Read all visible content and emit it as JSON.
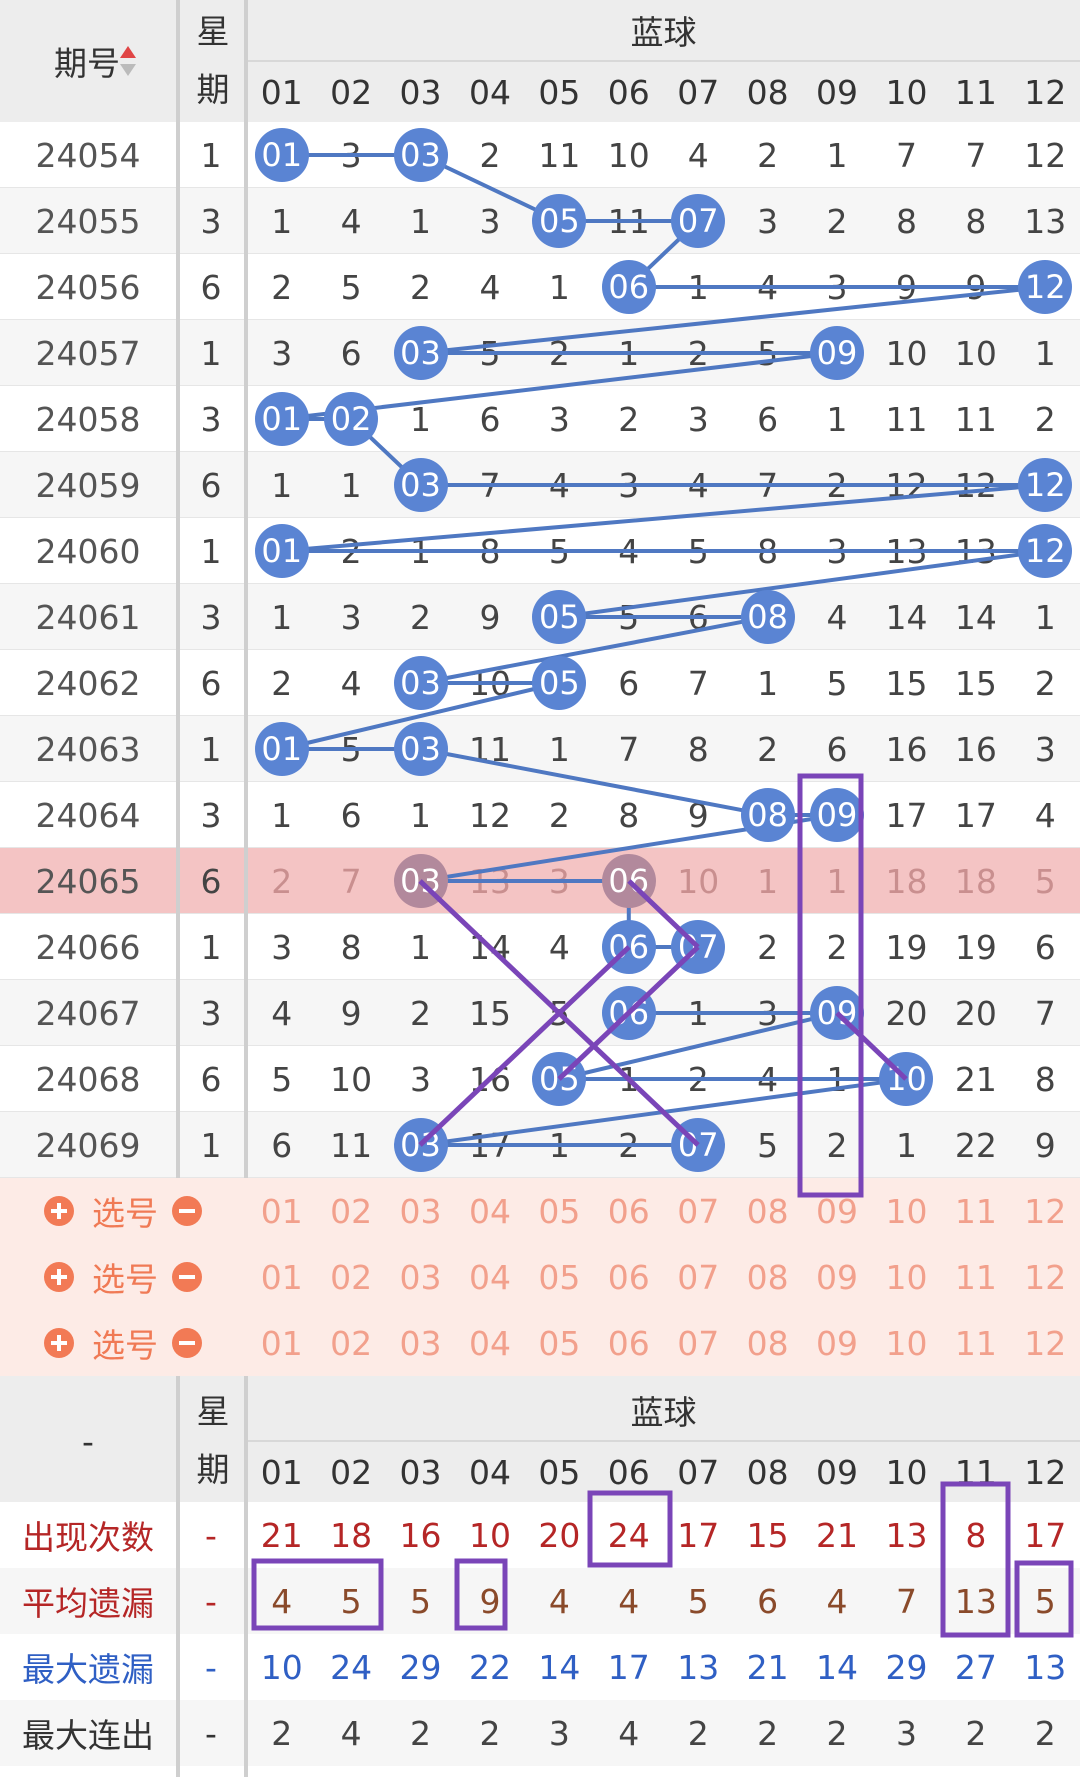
{
  "header": {
    "period": "期号",
    "weekday": "星期",
    "group": "蓝球",
    "columns": [
      "01",
      "02",
      "03",
      "04",
      "05",
      "06",
      "07",
      "08",
      "09",
      "10",
      "11",
      "12"
    ]
  },
  "rows": [
    {
      "period": "24054",
      "weekday": "1",
      "cells": [
        {
          "ball": "01"
        },
        "3",
        {
          "ball": "03"
        },
        "2",
        "11",
        "10",
        "4",
        "2",
        "1",
        "7",
        "7",
        "12"
      ]
    },
    {
      "period": "24055",
      "weekday": "3",
      "cells": [
        "1",
        "4",
        "1",
        "3",
        {
          "ball": "05"
        },
        "11",
        {
          "ball": "07"
        },
        "3",
        "2",
        "8",
        "8",
        "13"
      ]
    },
    {
      "period": "24056",
      "weekday": "6",
      "cells": [
        "2",
        "5",
        "2",
        "4",
        "1",
        {
          "ball": "06"
        },
        "1",
        "4",
        "3",
        "9",
        "9",
        {
          "ball": "12"
        }
      ]
    },
    {
      "period": "24057",
      "weekday": "1",
      "cells": [
        "3",
        "6",
        {
          "ball": "03"
        },
        "5",
        "2",
        "1",
        "2",
        "5",
        {
          "ball": "09"
        },
        "10",
        "10",
        "1"
      ]
    },
    {
      "period": "24058",
      "weekday": "3",
      "cells": [
        {
          "ball": "01"
        },
        {
          "ball": "02"
        },
        "1",
        "6",
        "3",
        "2",
        "3",
        "6",
        "1",
        "11",
        "11",
        "2"
      ]
    },
    {
      "period": "24059",
      "weekday": "6",
      "cells": [
        "1",
        "1",
        {
          "ball": "03"
        },
        "7",
        "4",
        "3",
        "4",
        "7",
        "2",
        "12",
        "12",
        {
          "ball": "12"
        }
      ]
    },
    {
      "period": "24060",
      "weekday": "1",
      "cells": [
        {
          "ball": "01"
        },
        "2",
        "1",
        "8",
        "5",
        "4",
        "5",
        "8",
        "3",
        "13",
        "13",
        {
          "ball": "12"
        }
      ]
    },
    {
      "period": "24061",
      "weekday": "3",
      "cells": [
        "1",
        "3",
        "2",
        "9",
        {
          "ball": "05"
        },
        "5",
        "6",
        {
          "ball": "08"
        },
        "4",
        "14",
        "14",
        "1"
      ]
    },
    {
      "period": "24062",
      "weekday": "6",
      "cells": [
        "2",
        "4",
        {
          "ball": "03"
        },
        "10",
        {
          "ball": "05"
        },
        "6",
        "7",
        "1",
        "5",
        "15",
        "15",
        "2"
      ]
    },
    {
      "period": "24063",
      "weekday": "1",
      "cells": [
        {
          "ball": "01"
        },
        "5",
        {
          "ball": "03"
        },
        "11",
        "1",
        "7",
        "8",
        "2",
        "6",
        "16",
        "16",
        "3"
      ]
    },
    {
      "period": "24064",
      "weekday": "3",
      "cells": [
        "1",
        "6",
        "1",
        "12",
        "2",
        "8",
        "9",
        {
          "ball": "08"
        },
        {
          "ball": "09"
        },
        "17",
        "17",
        "4"
      ]
    },
    {
      "period": "24065",
      "weekday": "6",
      "highlight": true,
      "cells": [
        "2",
        "7",
        {
          "ball": "03"
        },
        "13",
        "3",
        {
          "ball": "06"
        },
        "10",
        "1",
        "1",
        "18",
        "18",
        "5"
      ]
    },
    {
      "period": "24066",
      "weekday": "1",
      "cells": [
        "3",
        "8",
        "1",
        "14",
        "4",
        {
          "ball": "06"
        },
        {
          "ball": "07"
        },
        "2",
        "2",
        "19",
        "19",
        "6"
      ]
    },
    {
      "period": "24067",
      "weekday": "3",
      "cells": [
        "4",
        "9",
        "2",
        "15",
        "5",
        {
          "ball": "06"
        },
        "1",
        "3",
        {
          "ball": "09"
        },
        "20",
        "20",
        "7"
      ]
    },
    {
      "period": "24068",
      "weekday": "6",
      "cells": [
        "5",
        "10",
        "3",
        "16",
        {
          "ball": "05"
        },
        "1",
        "2",
        "4",
        "1",
        {
          "ball": "10"
        },
        "21",
        "8"
      ]
    },
    {
      "period": "24069",
      "weekday": "1",
      "cells": [
        "6",
        "11",
        {
          "ball": "03"
        },
        "17",
        "1",
        "2",
        {
          "ball": "07"
        },
        "5",
        "2",
        "1",
        "22",
        "9"
      ]
    }
  ],
  "selection": {
    "label": "选号",
    "rows": [
      [
        "01",
        "02",
        "03",
        "04",
        "05",
        "06",
        "07",
        "08",
        "09",
        "10",
        "11",
        "12"
      ],
      [
        "01",
        "02",
        "03",
        "04",
        "05",
        "06",
        "07",
        "08",
        "09",
        "10",
        "11",
        "12"
      ],
      [
        "01",
        "02",
        "03",
        "04",
        "05",
        "06",
        "07",
        "08",
        "09",
        "10",
        "11",
        "12"
      ]
    ]
  },
  "stats": {
    "header": {
      "period": "-",
      "weekday": "星期",
      "group": "蓝球",
      "columns": [
        "01",
        "02",
        "03",
        "04",
        "05",
        "06",
        "07",
        "08",
        "09",
        "10",
        "11",
        "12"
      ]
    },
    "rows": [
      {
        "label": "出现次数",
        "weekday": "-",
        "values": [
          21,
          18,
          16,
          10,
          20,
          24,
          17,
          15,
          21,
          13,
          8,
          17
        ]
      },
      {
        "label": "平均遗漏",
        "weekday": "-",
        "values": [
          4,
          5,
          5,
          9,
          4,
          4,
          5,
          6,
          4,
          7,
          13,
          5
        ]
      },
      {
        "label": "最大遗漏",
        "weekday": "-",
        "values": [
          10,
          24,
          29,
          22,
          14,
          17,
          13,
          21,
          14,
          29,
          27,
          13
        ]
      },
      {
        "label": "最大连出",
        "weekday": "-",
        "values": [
          2,
          4,
          2,
          2,
          3,
          4,
          2,
          2,
          2,
          3,
          2,
          2
        ]
      }
    ]
  }
}
